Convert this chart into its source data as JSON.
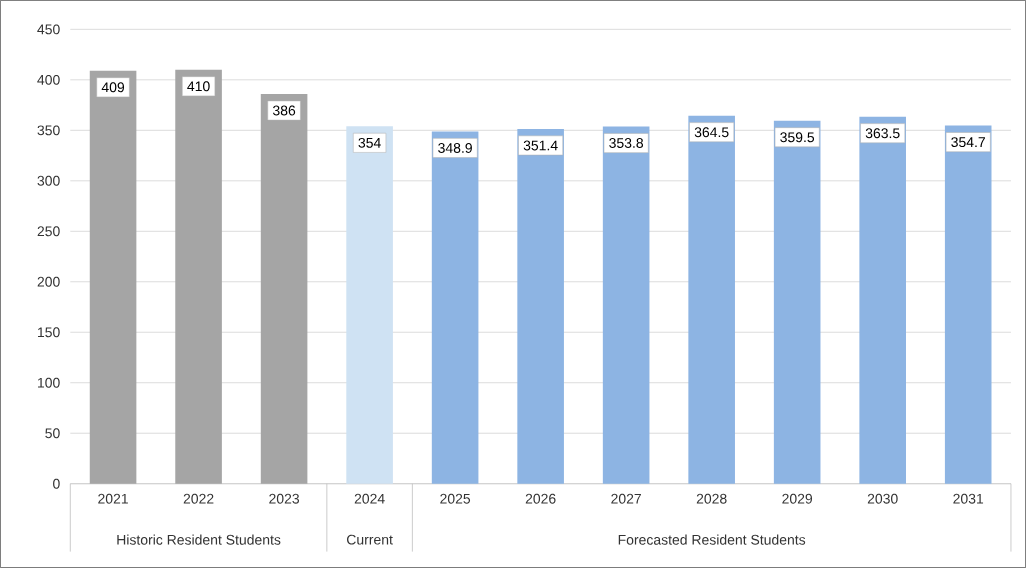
{
  "chart_data": {
    "type": "bar",
    "categories": [
      "2021",
      "2022",
      "2023",
      "2024",
      "2025",
      "2026",
      "2027",
      "2028",
      "2029",
      "2030",
      "2031"
    ],
    "values": [
      409,
      410,
      386,
      354,
      348.9,
      351.4,
      353.8,
      364.5,
      359.5,
      363.5,
      354.7
    ],
    "value_labels": [
      "409",
      "410",
      "386",
      "354",
      "348.9",
      "351.4",
      "353.8",
      "364.5",
      "359.5",
      "363.5",
      "354.7"
    ],
    "colors": [
      "#a5a5a5",
      "#a5a5a5",
      "#a5a5a5",
      "#cfe2f3",
      "#8db4e3",
      "#8db4e3",
      "#8db4e3",
      "#8db4e3",
      "#8db4e3",
      "#8db4e3",
      "#8db4e3"
    ],
    "ylim": [
      0,
      450
    ],
    "yticks": [
      0,
      50,
      100,
      150,
      200,
      250,
      300,
      350,
      400,
      450
    ],
    "grid": "y",
    "annotations": [
      "Historic Resident Students",
      "Current",
      "Forecasted Resident Students"
    ]
  }
}
